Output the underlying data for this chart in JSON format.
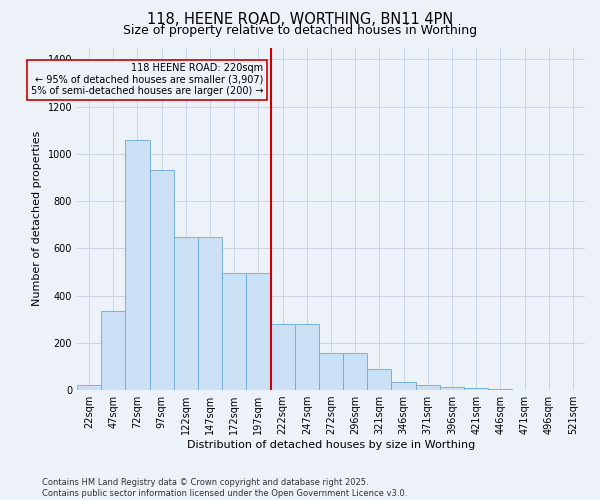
{
  "title": "118, HEENE ROAD, WORTHING, BN11 4PN",
  "subtitle": "Size of property relative to detached houses in Worthing",
  "xlabel": "Distribution of detached houses by size in Worthing",
  "ylabel": "Number of detached properties",
  "footnote": "Contains HM Land Registry data © Crown copyright and database right 2025.\nContains public sector information licensed under the Open Government Licence v3.0.",
  "categories": [
    "22sqm",
    "47sqm",
    "72sqm",
    "97sqm",
    "122sqm",
    "147sqm",
    "172sqm",
    "197sqm",
    "222sqm",
    "247sqm",
    "272sqm",
    "296sqm",
    "321sqm",
    "346sqm",
    "371sqm",
    "396sqm",
    "421sqm",
    "446sqm",
    "471sqm",
    "496sqm",
    "521sqm"
  ],
  "values": [
    20,
    335,
    1060,
    930,
    650,
    650,
    495,
    495,
    280,
    280,
    155,
    155,
    90,
    35,
    20,
    15,
    10,
    5,
    0,
    0,
    0
  ],
  "bar_color": "#cce0f5",
  "bar_edge_color": "#6aaad4",
  "vline_x_index": 8,
  "vline_color": "#cc0000",
  "annotation_text": "118 HEENE ROAD: 220sqm\n← 95% of detached houses are smaller (3,907)\n5% of semi-detached houses are larger (200) →",
  "annotation_box_color": "#cc0000",
  "ylim": [
    0,
    1450
  ],
  "yticks": [
    0,
    200,
    400,
    600,
    800,
    1000,
    1200,
    1400
  ],
  "grid_color": "#c8d4e8",
  "bg_color": "#edf2f9",
  "title_fontsize": 10.5,
  "subtitle_fontsize": 9,
  "axis_label_fontsize": 8,
  "tick_fontsize": 7,
  "footnote_fontsize": 6
}
